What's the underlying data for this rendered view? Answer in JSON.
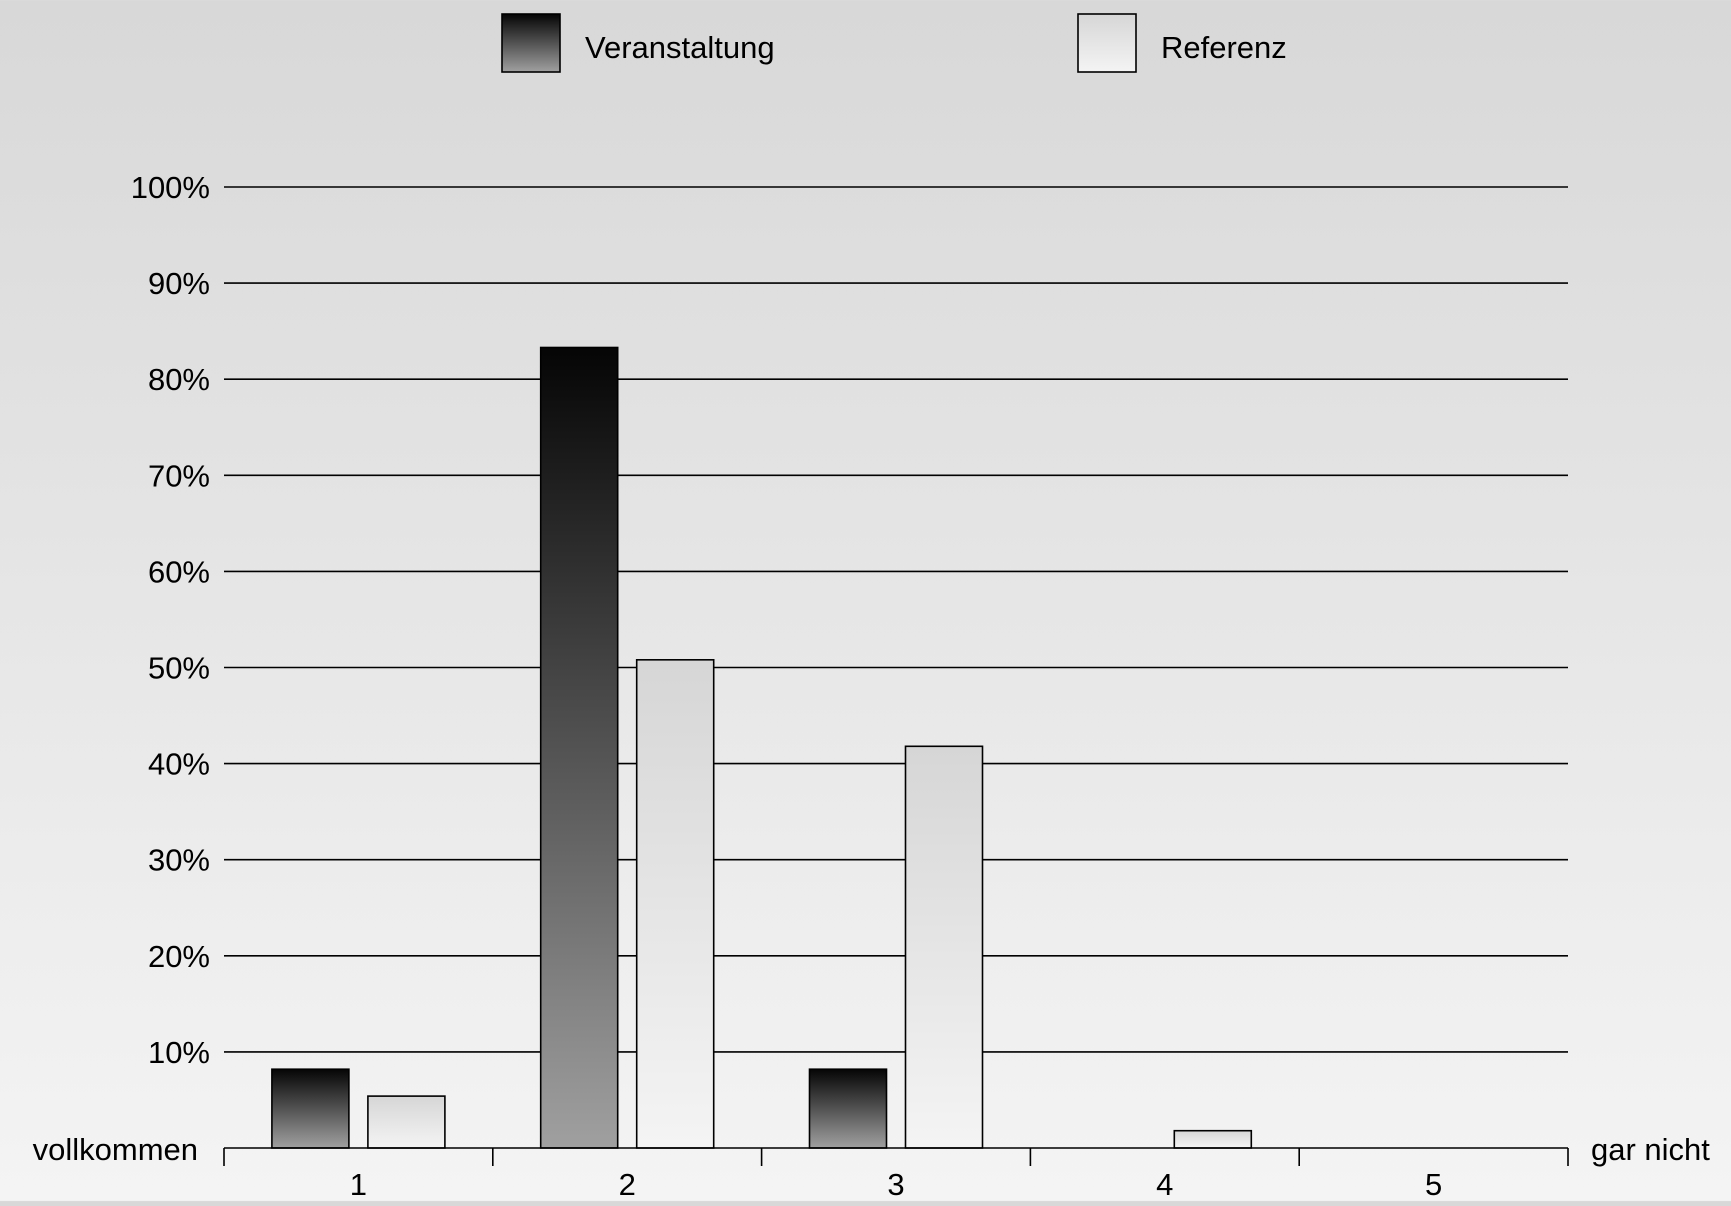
{
  "chart_data": {
    "type": "bar",
    "categories": [
      "1",
      "2",
      "3",
      "4",
      "5"
    ],
    "series": [
      {
        "name": "Veranstaltung",
        "values": [
          8.2,
          83.3,
          8.2,
          0,
          0
        ],
        "style": "dark-gradient"
      },
      {
        "name": "Referenz",
        "values": [
          5.4,
          50.8,
          41.8,
          1.8,
          0
        ],
        "style": "light-gradient"
      }
    ],
    "ylim": [
      0,
      100
    ],
    "yticks": [
      "10%",
      "20%",
      "30%",
      "40%",
      "50%",
      "60%",
      "70%",
      "80%",
      "90%",
      "100%"
    ],
    "x_left_label": "vollkommen",
    "x_right_label": "gar nicht",
    "grid": true,
    "legend_position": "top",
    "colors": {
      "background_top": "#d8d8d8",
      "background_bottom": "#f4f4f4",
      "dark_top": "#050505",
      "dark_bottom": "#a0a0a0",
      "light_top": "#d6d6d6",
      "light_bottom": "#f4f4f4",
      "line": "#000000"
    }
  }
}
